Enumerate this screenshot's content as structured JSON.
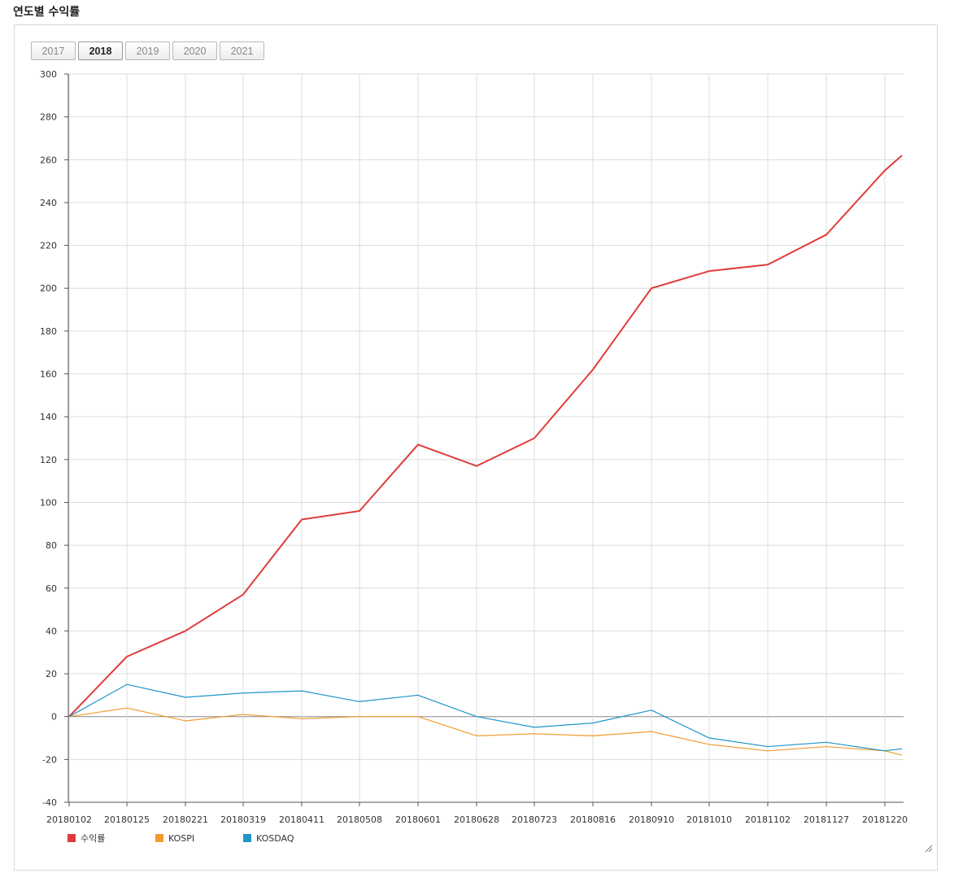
{
  "page": {
    "title": "연도별 수익률"
  },
  "year_tabs": [
    {
      "label": "2017",
      "active": false
    },
    {
      "label": "2018",
      "active": true
    },
    {
      "label": "2019",
      "active": false
    },
    {
      "label": "2020",
      "active": false
    },
    {
      "label": "2021",
      "active": false
    }
  ],
  "icons": {
    "resize_grip": "resize-grip-icon"
  },
  "colors": {
    "return": "#e03c3c",
    "kospi": "#f29b30",
    "kosdaq": "#1f95c8",
    "grid": "#dcdcdc",
    "zero_line": "#888888"
  },
  "chart_data": {
    "type": "line",
    "title": "",
    "xlabel": "",
    "ylabel": "",
    "ylim": [
      -40,
      300
    ],
    "yticks": [
      -40,
      -20,
      0,
      20,
      40,
      60,
      80,
      100,
      120,
      140,
      160,
      180,
      200,
      220,
      240,
      260,
      280,
      300
    ],
    "x": [
      "20180102",
      "20180125",
      "20180221",
      "20180319",
      "20180411",
      "20180508",
      "20180601",
      "20180628",
      "20180723",
      "20180816",
      "20180910",
      "20181010",
      "20181102",
      "20181127",
      "20181220",
      "20181228"
    ],
    "xticks": [
      "20180102",
      "20180125",
      "20180221",
      "20180319",
      "20180411",
      "20180508",
      "20180601",
      "20180628",
      "20180723",
      "20180816",
      "20180910",
      "20181010",
      "20181102",
      "20181127",
      "20181220"
    ],
    "grid": true,
    "legend_position": "bottom-left",
    "series": [
      {
        "name": "수익률",
        "color": "#e03c3c",
        "values": [
          0,
          28,
          40,
          57,
          92,
          96,
          127,
          117,
          130,
          162,
          200,
          208,
          211,
          225,
          255,
          262
        ]
      },
      {
        "name": "KOSPI",
        "color": "#f29b30",
        "values": [
          0,
          4,
          -2,
          1,
          -1,
          0,
          0,
          -9,
          -8,
          -9,
          -7,
          -13,
          -16,
          -14,
          -16,
          -18
        ]
      },
      {
        "name": "KOSDAQ",
        "color": "#1f95c8",
        "values": [
          0,
          15,
          9,
          11,
          12,
          7,
          10,
          0,
          -5,
          -3,
          3,
          -10,
          -14,
          -12,
          -16,
          -15
        ]
      }
    ]
  }
}
